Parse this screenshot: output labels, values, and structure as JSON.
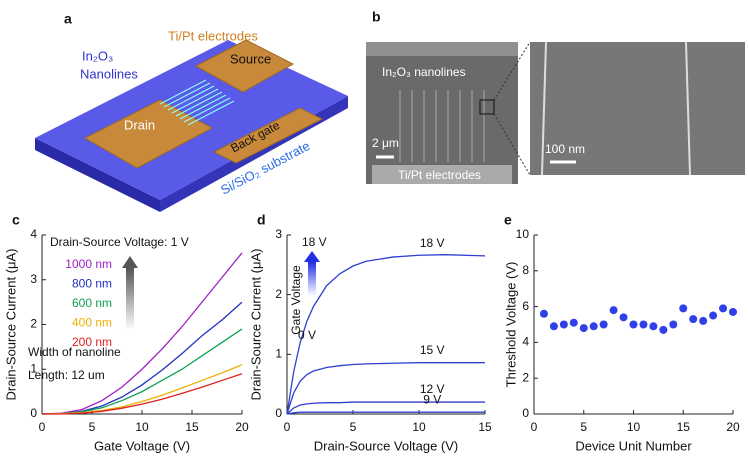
{
  "illustrations": {
    "a": {
      "label": "a",
      "electrodes": "Ti/Pt electrodes",
      "nanolines_line1": "In₂O₃",
      "nanolines_line2": "Nanolines",
      "source": "Source",
      "drain": "Drain",
      "back_gate": "Back gate",
      "substrate": "Si/SiO₂ substrate"
    },
    "b": {
      "label": "b",
      "nanolines": "In₂O₃ nanolines",
      "scale_left": "2 μm",
      "electrodes": "Ti/Pt electrodes",
      "scale_right": "100 nm"
    }
  },
  "chart_data": [
    {
      "type": "line",
      "label": "c",
      "xlabel": "Gate Voltage (V)",
      "ylabel": "Drain-Source Current (μA)",
      "xlim": [
        0,
        20
      ],
      "xticks": [
        0,
        5,
        10,
        15,
        20
      ],
      "ylim": [
        0,
        4
      ],
      "yticks": [
        0,
        1,
        2,
        3,
        4
      ],
      "legend": "upper-left",
      "annotations": [
        "Drain-Source Voltage: 1 V",
        "Width of nanoline",
        "Length: 12 um"
      ],
      "x": [
        0,
        2,
        4,
        6,
        8,
        10,
        12,
        14,
        16,
        18,
        20
      ],
      "series": [
        {
          "name": "1000 nm",
          "color": "#a020c8",
          "values": [
            0,
            0.02,
            0.1,
            0.3,
            0.6,
            1.0,
            1.45,
            1.95,
            2.5,
            3.05,
            3.6
          ]
        },
        {
          "name": "800 nm",
          "color": "#2030c0",
          "values": [
            0,
            0.01,
            0.06,
            0.18,
            0.38,
            0.65,
            0.98,
            1.35,
            1.75,
            2.1,
            2.5
          ]
        },
        {
          "name": "600 nm",
          "color": "#10a050",
          "values": [
            0,
            0.01,
            0.05,
            0.14,
            0.3,
            0.5,
            0.75,
            1.0,
            1.3,
            1.6,
            1.9
          ]
        },
        {
          "name": "400 nm",
          "color": "#f0b000",
          "values": [
            0,
            0.01,
            0.03,
            0.08,
            0.16,
            0.28,
            0.42,
            0.58,
            0.75,
            0.92,
            1.1
          ]
        },
        {
          "name": "200 nm",
          "color": "#e02020",
          "values": [
            0,
            0,
            0.02,
            0.06,
            0.13,
            0.22,
            0.33,
            0.46,
            0.6,
            0.75,
            0.9
          ]
        }
      ]
    },
    {
      "type": "line",
      "label": "d",
      "xlabel": "Drain-Source Voltage (V)",
      "ylabel": "Drain-Source Current (μA)",
      "xlim": [
        0,
        15
      ],
      "xticks": [
        0,
        5,
        10,
        15
      ],
      "ylim": [
        0,
        3
      ],
      "yticks": [
        0,
        1,
        2,
        3
      ],
      "legend": "inline",
      "annotations": [
        "Gate Voltage",
        "18 V",
        "0 V"
      ],
      "x": [
        0,
        0.5,
        1,
        1.5,
        2,
        3,
        4,
        5,
        6,
        8,
        10,
        12,
        15
      ],
      "series": [
        {
          "name": "18 V",
          "color": "#3040d0",
          "values": [
            0,
            0.7,
            1.2,
            1.55,
            1.8,
            2.15,
            2.35,
            2.48,
            2.56,
            2.63,
            2.66,
            2.67,
            2.65
          ]
        },
        {
          "name": "15 V",
          "color": "#3040d0",
          "values": [
            0,
            0.35,
            0.55,
            0.66,
            0.72,
            0.78,
            0.81,
            0.83,
            0.84,
            0.85,
            0.86,
            0.86,
            0.86
          ]
        },
        {
          "name": "12 V",
          "color": "#3040d0",
          "values": [
            0,
            0.1,
            0.15,
            0.17,
            0.18,
            0.19,
            0.19,
            0.2,
            0.2,
            0.2,
            0.2,
            0.2,
            0.2
          ]
        },
        {
          "name": "9 V",
          "color": "#3040d0",
          "values": [
            0,
            0.02,
            0.03,
            0.03,
            0.03,
            0.03,
            0.03,
            0.03,
            0.03,
            0.03,
            0.03,
            0.03,
            0.03
          ]
        }
      ]
    },
    {
      "type": "scatter",
      "label": "e",
      "xlabel": "Device Unit Number",
      "ylabel": "Threshold Voltage (V)",
      "xlim": [
        0,
        20
      ],
      "xticks": [
        0,
        5,
        10,
        15,
        20
      ],
      "ylim": [
        0,
        10
      ],
      "yticks": [
        0,
        2,
        4,
        6,
        8,
        10
      ],
      "color": "#3040e8",
      "x": [
        1,
        2,
        3,
        4,
        5,
        6,
        7,
        8,
        9,
        10,
        11,
        12,
        13,
        14,
        15,
        16,
        17,
        18,
        19,
        20
      ],
      "values": [
        5.6,
        4.9,
        5.0,
        5.1,
        4.8,
        4.9,
        5.0,
        5.8,
        5.4,
        5.0,
        5.0,
        4.9,
        4.7,
        5.0,
        5.9,
        5.3,
        5.2,
        5.5,
        5.9,
        5.7
      ]
    }
  ]
}
